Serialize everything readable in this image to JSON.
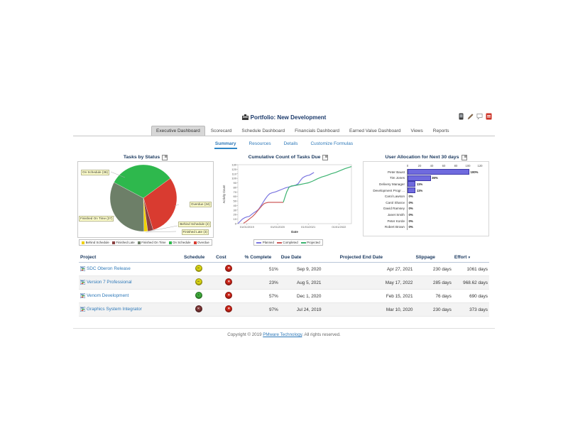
{
  "header": {
    "title": "Portfolio: New Development",
    "icons": [
      "device-icon",
      "edit-pencil-icon",
      "comment-bubble-icon",
      "pdf-icon"
    ]
  },
  "tabs": {
    "items": [
      {
        "label": "Executive Dashboard",
        "active": true
      },
      {
        "label": "Scorecard",
        "active": false
      },
      {
        "label": "Schedule Dashboard",
        "active": false
      },
      {
        "label": "Financials Dashboard",
        "active": false
      },
      {
        "label": "Earned Value Dashboard",
        "active": false
      },
      {
        "label": "Views",
        "active": false
      },
      {
        "label": "Reports",
        "active": false
      }
    ]
  },
  "subtabs": {
    "items": [
      {
        "label": "Summary",
        "active": true
      },
      {
        "label": "Resources",
        "active": false
      },
      {
        "label": "Details",
        "active": false
      },
      {
        "label": "Customize Formulas",
        "active": false
      }
    ]
  },
  "chart_data": [
    {
      "type": "pie",
      "title": "Tasks by Status",
      "slices": [
        {
          "label": "On Schedule",
          "value": 36,
          "color": "#2eb84d"
        },
        {
          "label": "Overdue",
          "value": 34,
          "color": "#d93b30"
        },
        {
          "label": "Finished Late",
          "value": 3,
          "color": "#8a4040"
        },
        {
          "label": "Behind Schedule",
          "value": 2,
          "color": "#f0d000"
        },
        {
          "label": "Finished On Time",
          "value": 37,
          "color": "#6d7f68"
        }
      ],
      "start_angle_deg": -62,
      "callouts": {
        "on_schedule": "On Schedule (36)",
        "overdue": "Overdue (34)",
        "finished_on_time": "Finished On Time (37)",
        "behind_schedule": "Behind Schedule (2)",
        "finished_late": "Finished Late (3)"
      },
      "legend": [
        {
          "label": "Behind Schedule",
          "color": "#f0d000"
        },
        {
          "label": "Finished Late",
          "color": "#8a4040"
        },
        {
          "label": "Finished On Time",
          "color": "#6d7f68"
        },
        {
          "label": "On Schedule",
          "color": "#2eb84d"
        },
        {
          "label": "Overdue",
          "color": "#d93b30"
        }
      ]
    },
    {
      "type": "line",
      "title": "Cumulative Count of Tasks Due",
      "xlabel": "Date",
      "ylabel": "Activity Count",
      "ylim": [
        0,
        130
      ],
      "ytick_step": 10,
      "xticks": [
        {
          "label": "01/01/2019",
          "pos": 0.08
        },
        {
          "label": "01/01/2020",
          "pos": 0.35
        },
        {
          "label": "01/01/2021",
          "pos": 0.62
        },
        {
          "label": "01/01/2022",
          "pos": 0.89
        }
      ],
      "series": [
        {
          "name": "Planned",
          "color": "#7b76e0",
          "points": [
            [
              0,
              0
            ],
            [
              0.02,
              5
            ],
            [
              0.04,
              10
            ],
            [
              0.06,
              13
            ],
            [
              0.08,
              15
            ],
            [
              0.1,
              16
            ],
            [
              0.12,
              20
            ],
            [
              0.14,
              24
            ],
            [
              0.16,
              27
            ],
            [
              0.18,
              31
            ],
            [
              0.2,
              38
            ],
            [
              0.22,
              46
            ],
            [
              0.24,
              54
            ],
            [
              0.26,
              61
            ],
            [
              0.28,
              66
            ],
            [
              0.3,
              68
            ],
            [
              0.33,
              70
            ],
            [
              0.36,
              73
            ],
            [
              0.39,
              76
            ],
            [
              0.42,
              79
            ],
            [
              0.45,
              81
            ],
            [
              0.48,
              83
            ],
            [
              0.51,
              85
            ],
            [
              0.53,
              88
            ],
            [
              0.55,
              95
            ],
            [
              0.57,
              101
            ],
            [
              0.59,
              104
            ],
            [
              0.61,
              106
            ],
            [
              0.63,
              107
            ],
            [
              0.65,
              110
            ],
            [
              0.67,
              113
            ]
          ]
        },
        {
          "name": "Completed",
          "color": "#cd5c5c",
          "points": [
            [
              0.05,
              1
            ],
            [
              0.07,
              4
            ],
            [
              0.09,
              8
            ],
            [
              0.11,
              12
            ],
            [
              0.13,
              16
            ],
            [
              0.15,
              21
            ],
            [
              0.17,
              27
            ],
            [
              0.19,
              33
            ],
            [
              0.21,
              39
            ],
            [
              0.23,
              44
            ],
            [
              0.25,
              46
            ],
            [
              0.27,
              47
            ],
            [
              0.4,
              47
            ]
          ]
        },
        {
          "name": "Projected",
          "color": "#3cb371",
          "points": [
            [
              0.4,
              47
            ],
            [
              0.41,
              55
            ],
            [
              0.43,
              70
            ],
            [
              0.45,
              80
            ],
            [
              0.47,
              83
            ],
            [
              0.5,
              84
            ],
            [
              0.54,
              86
            ],
            [
              0.58,
              88
            ],
            [
              0.62,
              90
            ],
            [
              0.66,
              94
            ],
            [
              0.7,
              99
            ],
            [
              0.74,
              103
            ],
            [
              0.78,
              106
            ],
            [
              0.82,
              110
            ],
            [
              0.86,
              113
            ],
            [
              0.9,
              117
            ],
            [
              0.94,
              121
            ],
            [
              1.0,
              126
            ]
          ]
        }
      ]
    },
    {
      "type": "bar",
      "title": "User Allocation for Next 30 days",
      "orientation": "horizontal",
      "xticks": [
        0,
        20,
        40,
        60,
        80,
        100,
        120
      ],
      "xmax": 130,
      "categories": [
        "Peter Baust",
        "Tim Jones",
        "Delivery Manager",
        "Development Progr ...",
        "Carol Lawson",
        "Carol Sharov",
        "David Ramsey",
        "Janet Smith",
        "Peter Korde",
        "Robert Brown"
      ],
      "values": [
        100,
        36,
        11,
        11,
        0,
        0,
        0,
        0,
        0,
        0
      ],
      "value_labels": [
        "100%",
        "36%",
        "11%",
        "11%",
        "0%",
        "0%",
        "0%",
        "0%",
        "0%",
        "0%"
      ],
      "bar_color": "#6f6ade"
    }
  ],
  "table": {
    "columns": [
      "Project",
      "Schedule",
      "Cost",
      "% Complete",
      "Due Date",
      "Projected End Date",
      "Slippage",
      "Effort"
    ],
    "sort_column": "Effort",
    "sort_indicator": "▼",
    "rows": [
      {
        "project": "SDC Oberon Release",
        "schedule_status": "yellow-dash",
        "cost_status": "red-x",
        "pct_complete": "51%",
        "due_date": "Sep 9, 2020",
        "projected_end": "Apr 27, 2021",
        "slippage": "230 days",
        "effort": "1061 days"
      },
      {
        "project": "Version 7 Professional",
        "schedule_status": "yellow-dash",
        "cost_status": "red-x",
        "pct_complete": "23%",
        "due_date": "Aug 5, 2021",
        "projected_end": "May 17, 2022",
        "slippage": "285 days",
        "effort": "968.62 days"
      },
      {
        "project": "Venom Development",
        "schedule_status": "green",
        "cost_status": "red-x",
        "pct_complete": "57%",
        "due_date": "Dec 1, 2020",
        "projected_end": "Feb 15, 2021",
        "slippage": "76 days",
        "effort": "690 days"
      },
      {
        "project": "Graphics System Integrator",
        "schedule_status": "darkred-x",
        "cost_status": "red-x",
        "pct_complete": "97%",
        "due_date": "Jul 24, 2019",
        "projected_end": "Mar 10, 2020",
        "slippage": "230 days",
        "effort": "373 days"
      }
    ]
  },
  "footer": {
    "text_before": "Copyright © 2019 ",
    "link_text": "PMware Technology",
    "text_after": ". All rights reserved."
  }
}
